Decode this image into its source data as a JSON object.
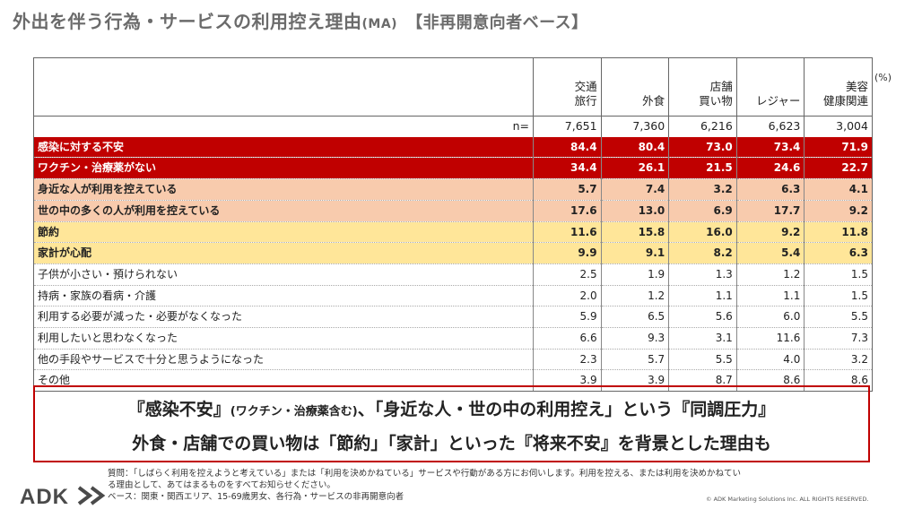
{
  "title": {
    "main": "外出を伴う行為・サービスの利用控え理由",
    "ma": "(MA)",
    "base": "【非再開意向者ベース】"
  },
  "percent_unit": "(%)",
  "table": {
    "columns": [
      {
        "line1": "交通",
        "line2": "旅行"
      },
      {
        "line1": "",
        "line2": "外食"
      },
      {
        "line1": "店舗",
        "line2": "買い物"
      },
      {
        "line1": "",
        "line2": "レジャー"
      },
      {
        "line1": "美容",
        "line2": "健康関連"
      }
    ],
    "n_label": "n=",
    "n_values": [
      "7,651",
      "7,360",
      "6,216",
      "6,623",
      "3,004"
    ],
    "rows": [
      {
        "label": "感染に対する不安",
        "values": [
          "84.4",
          "80.4",
          "73.0",
          "73.4",
          "71.9"
        ],
        "style": "red"
      },
      {
        "label": "ワクチン・治療薬がない",
        "values": [
          "34.4",
          "26.1",
          "21.5",
          "24.6",
          "22.7"
        ],
        "style": "red"
      },
      {
        "label": "身近な人が利用を控えている",
        "values": [
          "5.7",
          "7.4",
          "3.2",
          "6.3",
          "4.1"
        ],
        "style": "peach"
      },
      {
        "label": "世の中の多くの人が利用を控えている",
        "values": [
          "17.6",
          "13.0",
          "6.9",
          "17.7",
          "9.2"
        ],
        "style": "peach"
      },
      {
        "label": "節約",
        "values": [
          "11.6",
          "15.8",
          "16.0",
          "9.2",
          "11.8"
        ],
        "style": "yellow"
      },
      {
        "label": "家計が心配",
        "values": [
          "9.9",
          "9.1",
          "8.2",
          "5.4",
          "6.3"
        ],
        "style": "yellow"
      },
      {
        "label": "子供が小さい・預けられない",
        "values": [
          "2.5",
          "1.9",
          "1.3",
          "1.2",
          "1.5"
        ],
        "style": "plain"
      },
      {
        "label": "持病・家族の看病・介護",
        "values": [
          "2.0",
          "1.2",
          "1.1",
          "1.1",
          "1.5"
        ],
        "style": "plain"
      },
      {
        "label": "利用する必要が減った・必要がなくなった",
        "values": [
          "5.9",
          "6.5",
          "5.6",
          "6.0",
          "5.5"
        ],
        "style": "plain"
      },
      {
        "label": "利用したいと思わなくなった",
        "values": [
          "6.6",
          "9.3",
          "3.1",
          "11.6",
          "7.3"
        ],
        "style": "plain"
      },
      {
        "label": "他の手段やサービスで十分と思うようになった",
        "values": [
          "2.3",
          "5.7",
          "5.5",
          "4.0",
          "3.2"
        ],
        "style": "plain"
      },
      {
        "label": "その他",
        "values": [
          "3.9",
          "3.9",
          "8.7",
          "8.6",
          "8.6"
        ],
        "style": "plain"
      }
    ]
  },
  "summary": {
    "line1_a": "『感染不安』",
    "line1_small": "(ワクチン・治療薬含む)",
    "line1_b": "、「身近な人・世の中の利用控え」という『同調圧力』",
    "line2": "外食・店舗での買い物は「節約」「家計」といった『将来不安』を背景とした理由も"
  },
  "footnote": {
    "line1": "質問：「しばらく利用を控えようと考えている」または「利用を決めかねている」サービスや行動がある方にお伺いします。利用を控える、または利用を決めかねてい",
    "line2": "る理由として、あてはまるものをすべてお知らせください。",
    "line3": "ベース：関東・関西エリア、15-69歳男女、各行為・サービスの非再開意向者"
  },
  "logo_text": "ADK",
  "copyright": "© ADK Marketing Solutions Inc. ALL RIGHTS RESERVED."
}
